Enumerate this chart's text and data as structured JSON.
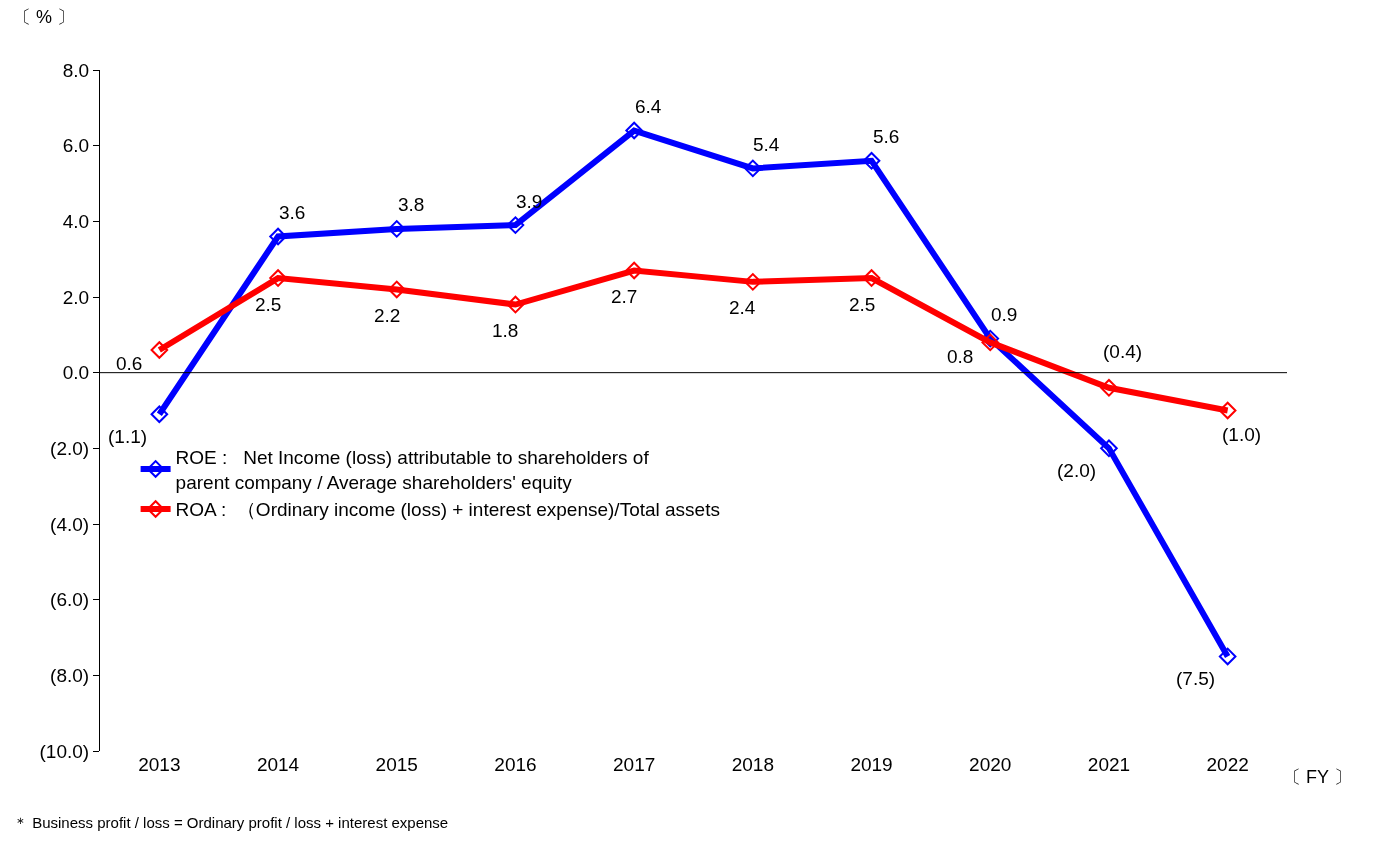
{
  "chart_data": {
    "type": "line",
    "ylabel": "〔 % 〕",
    "xlabel": "〔 FY 〕",
    "categories": [
      "2013",
      "2014",
      "2015",
      "2016",
      "2017",
      "2018",
      "2019",
      "2020",
      "2021",
      "2022"
    ],
    "series": [
      {
        "name": "ROE :   Net Income (loss) attributable to shareholders of\nparent company / Average shareholders' equity",
        "color": "#0000ff",
        "values": [
          -1.1,
          3.6,
          3.8,
          3.9,
          6.4,
          5.4,
          5.6,
          0.9,
          -2.0,
          -7.5
        ],
        "value_labels": [
          "(1.1)",
          "3.6",
          "3.8",
          "3.9",
          "6.4",
          "5.4",
          "5.6",
          "0.9",
          "(2.0)",
          "(7.5)"
        ]
      },
      {
        "name": "ROA :  （Ordinary income (loss) + interest expense)/Total assets",
        "color": "#ff0000",
        "values": [
          0.6,
          2.5,
          2.2,
          1.8,
          2.7,
          2.4,
          2.5,
          0.8,
          -0.4,
          -1.0
        ],
        "value_labels": [
          "0.6",
          "2.5",
          "2.2",
          "1.8",
          "2.7",
          "2.4",
          "2.5",
          "0.8",
          "(0.4)",
          "(1.0)"
        ]
      }
    ],
    "ylim": [
      -10,
      8
    ],
    "yticks": [
      {
        "value": 8,
        "label": "8.0"
      },
      {
        "value": 6,
        "label": "6.0"
      },
      {
        "value": 4,
        "label": "4.0"
      },
      {
        "value": 2,
        "label": "2.0"
      },
      {
        "value": 0,
        "label": "0.0"
      },
      {
        "value": -2,
        "label": "(2.0)"
      },
      {
        "value": -4,
        "label": "(4.0)"
      },
      {
        "value": -6,
        "label": "(6.0)"
      },
      {
        "value": -8,
        "label": "(8.0)"
      },
      {
        "value": -10,
        "label": "(10.0)"
      }
    ],
    "ref_lines": [
      {
        "axis": "y",
        "value": 0,
        "color": "#000000"
      }
    ],
    "marker": "diamond",
    "line_style": "solid",
    "grid": false,
    "legend": "bottom left",
    "annotations": [
      "＊ Business profit / loss = Ordinary profit / loss + interest expense"
    ]
  }
}
